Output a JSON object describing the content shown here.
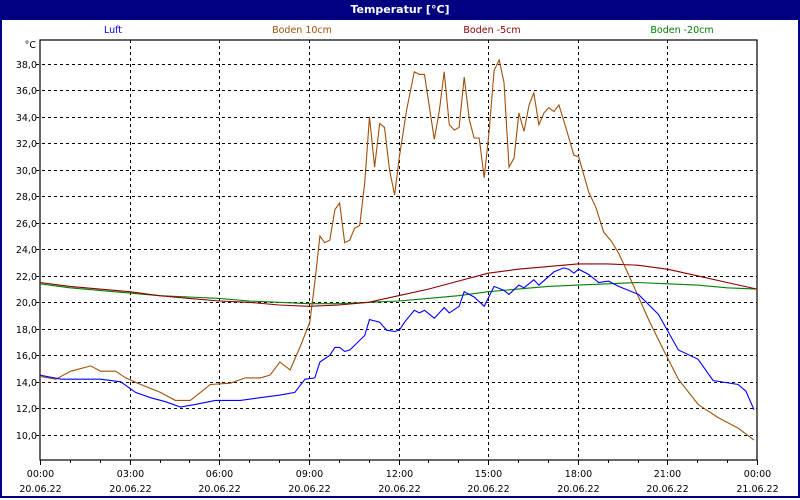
{
  "window": {
    "title": "Temperatur [°C]"
  },
  "chart_data": {
    "type": "line",
    "title": "Temperatur [°C]",
    "ylabel": "°C",
    "xlabel": "",
    "ylim": [
      8.1,
      39.8
    ],
    "xlim_hours": [
      0,
      24
    ],
    "grid": true,
    "legend_placement": "top",
    "y_ticks": [
      "10,0",
      "12,0",
      "14,0",
      "16,0",
      "18,0",
      "20,0",
      "22,0",
      "24,0",
      "26,0",
      "28,0",
      "30,0",
      "32,0",
      "34,0",
      "36,0",
      "38,0"
    ],
    "x_ticks": [
      {
        "time": "00:00",
        "date": "20.06.22"
      },
      {
        "time": "03:00",
        "date": "20.06.22"
      },
      {
        "time": "06:00",
        "date": "20.06.22"
      },
      {
        "time": "09:00",
        "date": "20.06.22"
      },
      {
        "time": "12:00",
        "date": "20.06.22"
      },
      {
        "time": "15:00",
        "date": "20.06.22"
      },
      {
        "time": "18:00",
        "date": "20.06.22"
      },
      {
        "time": "21:00",
        "date": "20.06.22"
      },
      {
        "time": "00:00",
        "date": "21.06.22"
      }
    ],
    "series": [
      {
        "name": "Luft",
        "color": "#0000ff",
        "points": [
          [
            0,
            14.5
          ],
          [
            0.7,
            14.2
          ],
          [
            2.03,
            14.2
          ],
          [
            2.7,
            14.0
          ],
          [
            3.2,
            13.2
          ],
          [
            3.7,
            12.8
          ],
          [
            4.2,
            12.5
          ],
          [
            4.7,
            12.1
          ],
          [
            5.2,
            12.3
          ],
          [
            5.87,
            12.6
          ],
          [
            6.7,
            12.6
          ],
          [
            7.37,
            12.8
          ],
          [
            8.03,
            13.0
          ],
          [
            8.53,
            13.2
          ],
          [
            8.87,
            14.2
          ],
          [
            9.2,
            14.3
          ],
          [
            9.37,
            15.5
          ],
          [
            9.7,
            16.0
          ],
          [
            9.87,
            16.6
          ],
          [
            10.03,
            16.6
          ],
          [
            10.2,
            16.3
          ],
          [
            10.37,
            16.4
          ],
          [
            10.87,
            17.5
          ],
          [
            11.03,
            18.7
          ],
          [
            11.37,
            18.5
          ],
          [
            11.6,
            17.9
          ],
          [
            11.87,
            17.8
          ],
          [
            12.03,
            17.9
          ],
          [
            12.2,
            18.5
          ],
          [
            12.53,
            19.4
          ],
          [
            12.7,
            19.2
          ],
          [
            12.87,
            19.4
          ],
          [
            13.2,
            18.8
          ],
          [
            13.53,
            19.6
          ],
          [
            13.7,
            19.2
          ],
          [
            14.03,
            19.7
          ],
          [
            14.2,
            20.8
          ],
          [
            14.53,
            20.4
          ],
          [
            14.87,
            19.7
          ],
          [
            15.2,
            21.2
          ],
          [
            15.53,
            20.9
          ],
          [
            15.7,
            20.6
          ],
          [
            16.03,
            21.3
          ],
          [
            16.2,
            21.1
          ],
          [
            16.53,
            21.7
          ],
          [
            16.7,
            21.3
          ],
          [
            17.2,
            22.3
          ],
          [
            17.53,
            22.6
          ],
          [
            17.7,
            22.5
          ],
          [
            17.87,
            22.2
          ],
          [
            18.03,
            22.5
          ],
          [
            18.37,
            22.1
          ],
          [
            18.7,
            21.5
          ],
          [
            19.03,
            21.6
          ],
          [
            19.37,
            21.2
          ],
          [
            20.03,
            20.6
          ],
          [
            20.7,
            19.1
          ],
          [
            21.37,
            16.4
          ],
          [
            22.03,
            15.7
          ],
          [
            22.53,
            14.1
          ],
          [
            23.37,
            13.8
          ],
          [
            23.63,
            13.3
          ],
          [
            23.9,
            11.9
          ]
        ]
      },
      {
        "name": "Boden 10cm",
        "color": "#a0500a",
        "points": [
          [
            0,
            14.4
          ],
          [
            0.53,
            14.2
          ],
          [
            1.03,
            14.8
          ],
          [
            1.7,
            15.2
          ],
          [
            2.03,
            14.8
          ],
          [
            2.53,
            14.8
          ],
          [
            2.87,
            14.3
          ],
          [
            3.37,
            13.8
          ],
          [
            4.03,
            13.2
          ],
          [
            4.53,
            12.6
          ],
          [
            5.03,
            12.6
          ],
          [
            5.37,
            13.2
          ],
          [
            5.7,
            13.8
          ],
          [
            6.37,
            13.9
          ],
          [
            6.87,
            14.3
          ],
          [
            7.37,
            14.3
          ],
          [
            7.7,
            14.5
          ],
          [
            8.03,
            15.5
          ],
          [
            8.37,
            14.9
          ],
          [
            8.7,
            16.6
          ],
          [
            9.03,
            18.5
          ],
          [
            9.2,
            21.5
          ],
          [
            9.37,
            25.0
          ],
          [
            9.53,
            24.5
          ],
          [
            9.7,
            24.7
          ],
          [
            9.87,
            27.0
          ],
          [
            10.03,
            27.5
          ],
          [
            10.2,
            24.5
          ],
          [
            10.37,
            24.7
          ],
          [
            10.53,
            25.6
          ],
          [
            10.7,
            25.8
          ],
          [
            10.87,
            29.0
          ],
          [
            11.03,
            34.0
          ],
          [
            11.2,
            30.2
          ],
          [
            11.37,
            33.5
          ],
          [
            11.53,
            33.2
          ],
          [
            11.7,
            30.0
          ],
          [
            11.87,
            28.1
          ],
          [
            12.03,
            31.0
          ],
          [
            12.27,
            34.5
          ],
          [
            12.53,
            37.4
          ],
          [
            12.7,
            37.2
          ],
          [
            12.87,
            37.2
          ],
          [
            13.2,
            32.3
          ],
          [
            13.37,
            34.5
          ],
          [
            13.53,
            37.4
          ],
          [
            13.7,
            33.4
          ],
          [
            13.87,
            33.0
          ],
          [
            14.03,
            33.2
          ],
          [
            14.2,
            37.0
          ],
          [
            14.37,
            33.8
          ],
          [
            14.53,
            32.4
          ],
          [
            14.7,
            32.4
          ],
          [
            14.87,
            29.4
          ],
          [
            15.03,
            32.8
          ],
          [
            15.2,
            37.5
          ],
          [
            15.37,
            38.3
          ],
          [
            15.53,
            36.6
          ],
          [
            15.7,
            30.2
          ],
          [
            15.87,
            30.9
          ],
          [
            16.03,
            34.3
          ],
          [
            16.2,
            32.9
          ],
          [
            16.37,
            34.9
          ],
          [
            16.53,
            35.8
          ],
          [
            16.7,
            33.4
          ],
          [
            16.87,
            34.3
          ],
          [
            17.03,
            34.7
          ],
          [
            17.2,
            34.4
          ],
          [
            17.37,
            34.9
          ],
          [
            17.6,
            33.2
          ],
          [
            17.87,
            31.1
          ],
          [
            18.03,
            31.0
          ],
          [
            18.37,
            28.3
          ],
          [
            18.6,
            27.2
          ],
          [
            18.87,
            25.3
          ],
          [
            19.13,
            24.6
          ],
          [
            19.37,
            23.7
          ],
          [
            19.7,
            22.1
          ],
          [
            20.37,
            18.7
          ],
          [
            20.87,
            16.4
          ],
          [
            21.37,
            14.2
          ],
          [
            22.03,
            12.3
          ],
          [
            22.7,
            11.3
          ],
          [
            23.37,
            10.5
          ],
          [
            23.9,
            9.6
          ]
        ]
      },
      {
        "name": "Boden -5cm",
        "color": "#8b0000",
        "points": [
          [
            0,
            21.5
          ],
          [
            1,
            21.2
          ],
          [
            2,
            21.0
          ],
          [
            3,
            20.8
          ],
          [
            4,
            20.5
          ],
          [
            5,
            20.3
          ],
          [
            6,
            20.1
          ],
          [
            7,
            20.0
          ],
          [
            8,
            19.8
          ],
          [
            9,
            19.7
          ],
          [
            10,
            19.8
          ],
          [
            11,
            20.0
          ],
          [
            12,
            20.5
          ],
          [
            13,
            21.0
          ],
          [
            14,
            21.6
          ],
          [
            15,
            22.2
          ],
          [
            16,
            22.5
          ],
          [
            17,
            22.7
          ],
          [
            18,
            22.9
          ],
          [
            19,
            22.9
          ],
          [
            20,
            22.8
          ],
          [
            21,
            22.5
          ],
          [
            22,
            22.0
          ],
          [
            23,
            21.5
          ],
          [
            24,
            21.0
          ]
        ]
      },
      {
        "name": "Boden -20cm",
        "color": "#008000",
        "points": [
          [
            0,
            21.4
          ],
          [
            1,
            21.1
          ],
          [
            2,
            20.9
          ],
          [
            3,
            20.7
          ],
          [
            4,
            20.5
          ],
          [
            5,
            20.4
          ],
          [
            6,
            20.3
          ],
          [
            7,
            20.1
          ],
          [
            8,
            20.0
          ],
          [
            9,
            19.9
          ],
          [
            10,
            19.9
          ],
          [
            11,
            20.0
          ],
          [
            12,
            20.1
          ],
          [
            13,
            20.3
          ],
          [
            14,
            20.5
          ],
          [
            15,
            20.8
          ],
          [
            16,
            21.0
          ],
          [
            17,
            21.2
          ],
          [
            18,
            21.3
          ],
          [
            19,
            21.4
          ],
          [
            20,
            21.5
          ],
          [
            21,
            21.4
          ],
          [
            22,
            21.3
          ],
          [
            23,
            21.1
          ],
          [
            24,
            21.0
          ]
        ]
      }
    ]
  }
}
